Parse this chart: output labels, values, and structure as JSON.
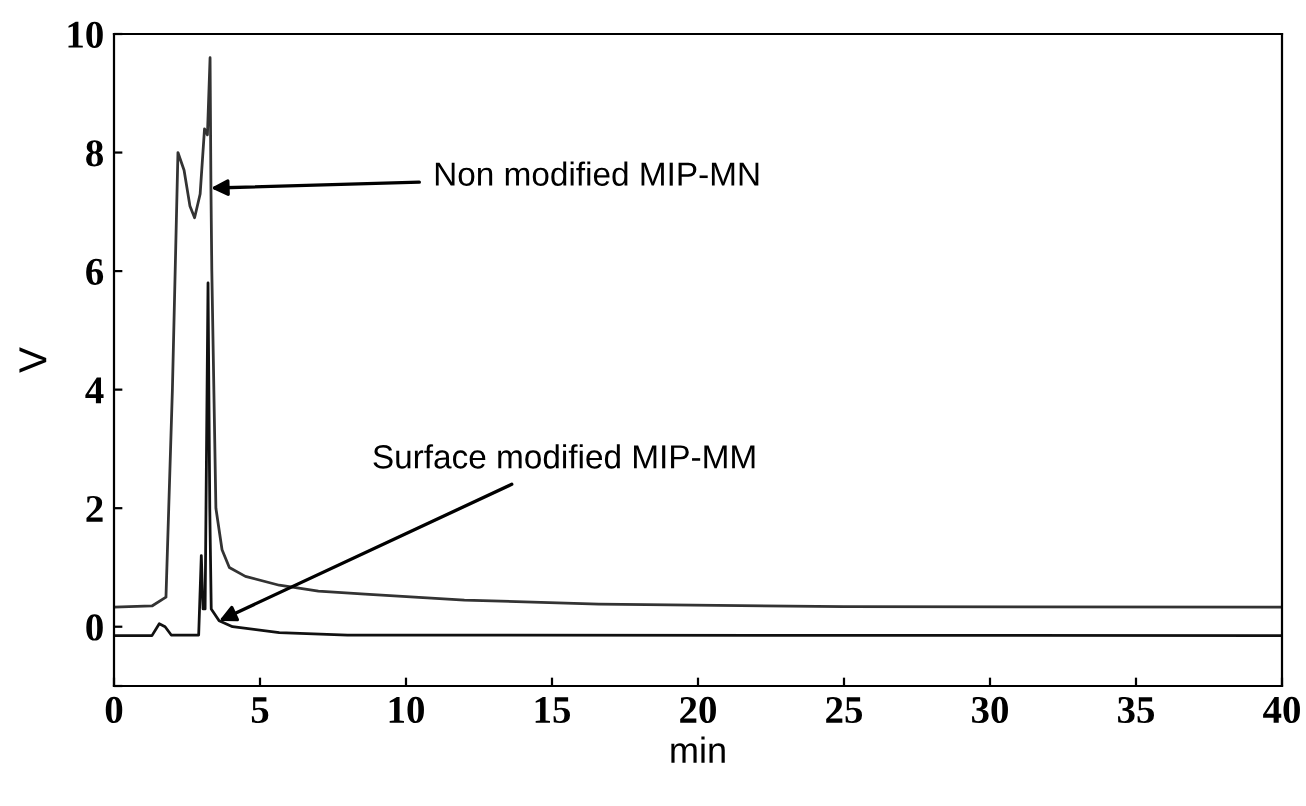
{
  "chart_data": {
    "type": "line",
    "xlabel": "min",
    "ylabel": "V",
    "xlim": [
      0,
      40
    ],
    "ylim": [
      -1,
      10
    ],
    "xticks": [
      0,
      5,
      10,
      15,
      20,
      25,
      30,
      35,
      40
    ],
    "yticks": [
      {
        "value": -1,
        "label": null
      },
      0,
      2,
      4,
      6,
      8,
      10
    ],
    "grid": false,
    "legend": false,
    "marker": "none",
    "line_style": "solid",
    "series": [
      {
        "color": "#333333",
        "x": [
          0,
          1.3,
          1.78,
          2.0,
          2.19,
          2.4,
          2.6,
          2.76,
          2.95,
          3.1,
          3.2,
          3.29,
          3.32,
          3.35,
          3.49,
          3.7,
          3.95,
          4.5,
          5.66,
          7,
          8.6,
          12,
          16.6,
          25,
          40
        ],
        "values": [
          0.33,
          0.35,
          0.5,
          4.0,
          8.0,
          7.7,
          7.1,
          6.9,
          7.3,
          8.4,
          8.3,
          9.6,
          7.4,
          6.0,
          2.0,
          1.3,
          1.0,
          0.85,
          0.7,
          0.6,
          0.55,
          0.45,
          0.38,
          0.34,
          0.33
        ]
      },
      {
        "color": "#111111",
        "x": [
          0,
          1.3,
          1.55,
          1.75,
          1.96,
          2.9,
          2.99,
          3.05,
          3.12,
          3.22,
          3.28,
          3.33,
          3.6,
          4.06,
          5.66,
          8,
          40
        ],
        "values": [
          -0.15,
          -0.15,
          0.05,
          0.0,
          -0.14,
          -0.14,
          1.2,
          0.3,
          0.3,
          5.8,
          2.0,
          0.3,
          0.1,
          0.0,
          -0.1,
          -0.14,
          -0.15
        ]
      }
    ],
    "annotations": [
      {
        "text": "Non modified MIP-MN",
        "x": 3.32,
        "y": 7.4
      },
      {
        "text": "Surface modified MIP-MM",
        "x": 3.6,
        "y": 0.1
      }
    ]
  }
}
